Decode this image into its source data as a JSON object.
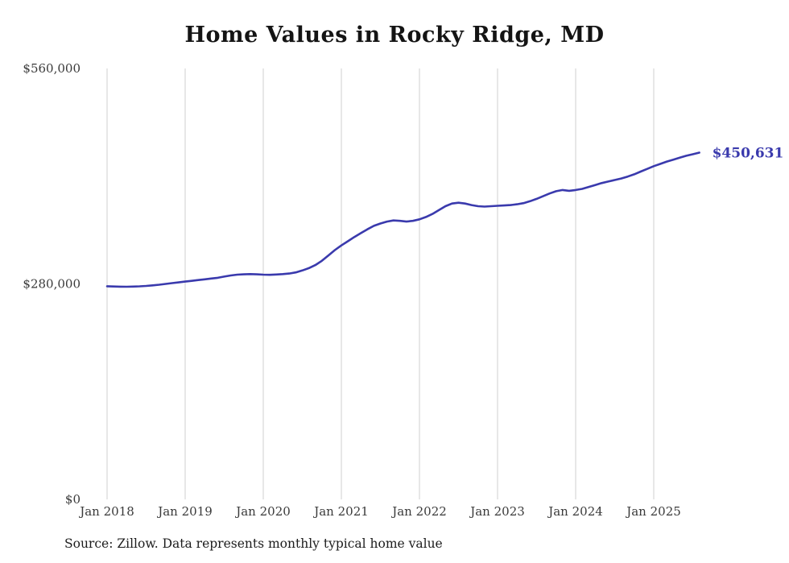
{
  "title": "Home Values in Rocky Ridge, MD",
  "source_note": "Source: Zillow. Data represents monthly typical home value",
  "colors": {
    "line": "#3a3aad",
    "end_label": "#3a3aad",
    "gridline": "#cfcfcf",
    "tick_text": "#3a3a3a",
    "title_text": "#141414",
    "background": "#ffffff"
  },
  "chart_data": {
    "type": "line",
    "title": "Home Values in Rocky Ridge, MD",
    "series_name": "Typical home value",
    "x_interval": "monthly",
    "grid": "vertical",
    "legend": "none",
    "ylim": [
      0,
      560000
    ],
    "yticks": [
      {
        "value": 0,
        "label": "$0"
      },
      {
        "value": 280000,
        "label": "$280,000"
      },
      {
        "value": 560000,
        "label": "$560,000"
      }
    ],
    "xticks": [
      {
        "index": 0,
        "label": "Jan 2018"
      },
      {
        "index": 12,
        "label": "Jan 2019"
      },
      {
        "index": 24,
        "label": "Jan 2020"
      },
      {
        "index": 36,
        "label": "Jan 2021"
      },
      {
        "index": 48,
        "label": "Jan 2022"
      },
      {
        "index": 60,
        "label": "Jan 2023"
      },
      {
        "index": 72,
        "label": "Jan 2024"
      },
      {
        "index": 84,
        "label": "Jan 2025"
      }
    ],
    "end_label": "$450,631",
    "end_value": 450631,
    "months": [
      "2018-01",
      "2018-02",
      "2018-03",
      "2018-04",
      "2018-05",
      "2018-06",
      "2018-07",
      "2018-08",
      "2018-09",
      "2018-10",
      "2018-11",
      "2018-12",
      "2019-01",
      "2019-02",
      "2019-03",
      "2019-04",
      "2019-05",
      "2019-06",
      "2019-07",
      "2019-08",
      "2019-09",
      "2019-10",
      "2019-11",
      "2019-12",
      "2020-01",
      "2020-02",
      "2020-03",
      "2020-04",
      "2020-05",
      "2020-06",
      "2020-07",
      "2020-08",
      "2020-09",
      "2020-10",
      "2020-11",
      "2020-12",
      "2021-01",
      "2021-02",
      "2021-03",
      "2021-04",
      "2021-05",
      "2021-06",
      "2021-07",
      "2021-08",
      "2021-09",
      "2021-10",
      "2021-11",
      "2021-12",
      "2022-01",
      "2022-02",
      "2022-03",
      "2022-04",
      "2022-05",
      "2022-06",
      "2022-07",
      "2022-08",
      "2022-09",
      "2022-10",
      "2022-11",
      "2022-12",
      "2023-01",
      "2023-02",
      "2023-03",
      "2023-04",
      "2023-05",
      "2023-06",
      "2023-07",
      "2023-08",
      "2023-09",
      "2023-10",
      "2023-11",
      "2023-12",
      "2024-01",
      "2024-02",
      "2024-03",
      "2024-04",
      "2024-05",
      "2024-06",
      "2024-07",
      "2024-08",
      "2024-09",
      "2024-10",
      "2024-11",
      "2024-12",
      "2025-01",
      "2025-02",
      "2025-03",
      "2025-04",
      "2025-05",
      "2025-06",
      "2025-07",
      "2025-08"
    ],
    "values": [
      277000,
      276700,
      276400,
      276300,
      276500,
      276900,
      277400,
      278100,
      279000,
      280000,
      281000,
      282000,
      283000,
      284000,
      285000,
      286000,
      287000,
      288000,
      289500,
      291000,
      292000,
      292500,
      292800,
      292500,
      292000,
      291800,
      292200,
      292800,
      293500,
      295000,
      297500,
      300500,
      304500,
      310000,
      317000,
      324000,
      330000,
      335500,
      341000,
      346000,
      351000,
      355500,
      358500,
      361000,
      362500,
      362000,
      361000,
      362000,
      364000,
      367000,
      371000,
      376000,
      381000,
      384500,
      385500,
      384500,
      382500,
      381000,
      380500,
      381000,
      381500,
      382000,
      382500,
      383500,
      385000,
      387500,
      390500,
      394000,
      397500,
      400500,
      402000,
      401000,
      402000,
      403500,
      406000,
      408500,
      411000,
      413000,
      415000,
      417000,
      419500,
      422500,
      426000,
      429500,
      433000,
      436000,
      439000,
      441500,
      444000,
      446500,
      448500,
      450631
    ]
  }
}
